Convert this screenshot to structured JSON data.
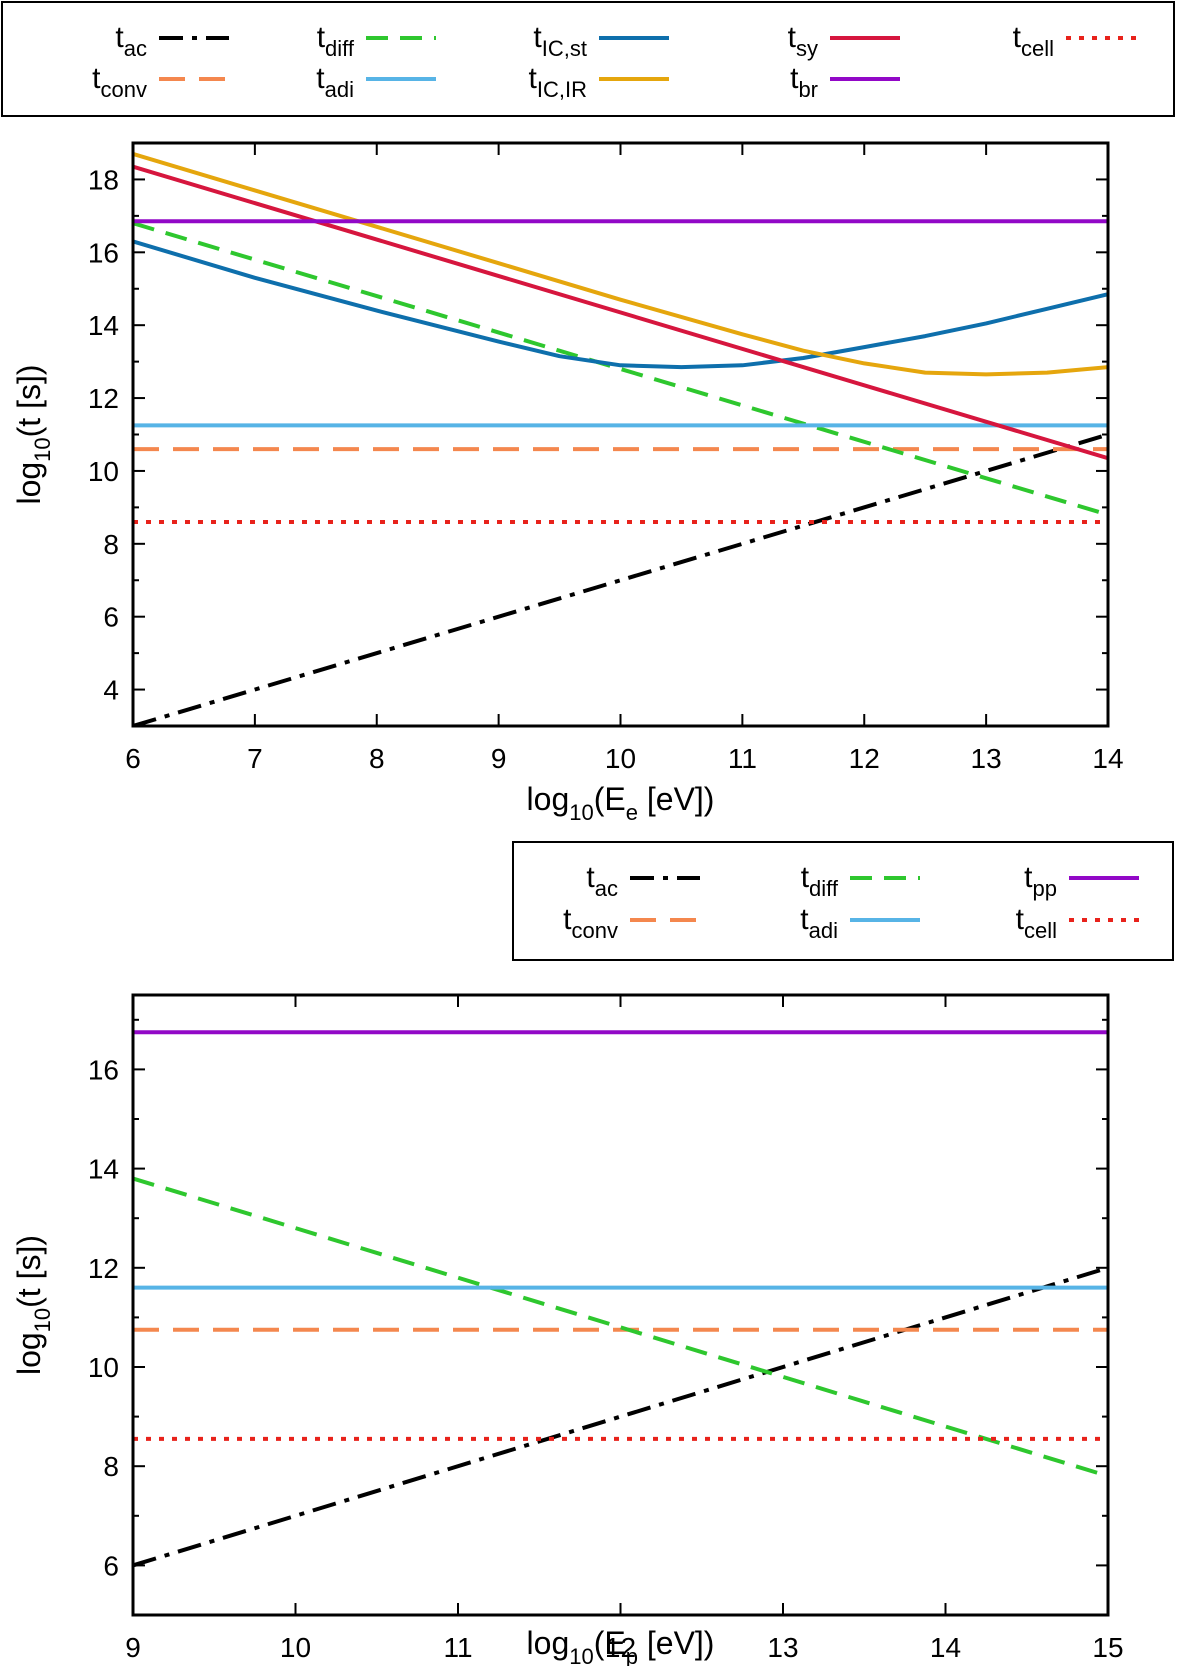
{
  "chart_data": [
    {
      "type": "line",
      "id": "electrons",
      "xlabel": {
        "main": "log",
        "sub1": "10",
        "mid": "(E",
        "sub2": "e",
        "tail": " [eV])"
      },
      "ylabel": {
        "main": "log",
        "sub1": "10",
        "tail": "(t [s])"
      },
      "xlim": [
        6,
        14
      ],
      "ylim": [
        3,
        19
      ],
      "xticks": [
        6,
        7,
        8,
        9,
        10,
        11,
        12,
        13,
        14
      ],
      "yticks": [
        4,
        6,
        8,
        10,
        12,
        14,
        16,
        18
      ],
      "series": [
        {
          "key": "ac",
          "name": "t",
          "sub": "ac",
          "color": "#000000",
          "dash": "dashdot",
          "x": [
            6,
            14
          ],
          "y": [
            3.0,
            11.0
          ]
        },
        {
          "key": "conv",
          "name": "t",
          "sub": "conv",
          "color": "#f4874e",
          "dash": "longdash",
          "x": [
            6,
            14
          ],
          "y": [
            10.6,
            10.6
          ]
        },
        {
          "key": "diff",
          "name": "t",
          "sub": "diff",
          "color": "#2ec72e",
          "dash": "dash",
          "x": [
            6,
            14
          ],
          "y": [
            16.8,
            8.8
          ]
        },
        {
          "key": "adi",
          "name": "t",
          "sub": "adi",
          "color": "#57b4e6",
          "dash": "solid",
          "x": [
            6,
            14
          ],
          "y": [
            11.25,
            11.25
          ]
        },
        {
          "key": "icst",
          "name": "t",
          "sub": "IC,st",
          "color": "#0e6fac",
          "dash": "solid",
          "x": [
            6,
            7,
            8,
            9,
            9.5,
            10,
            10.5,
            11,
            11.5,
            12,
            12.5,
            13,
            13.5,
            14
          ],
          "y": [
            16.3,
            15.3,
            14.4,
            13.55,
            13.15,
            12.9,
            12.85,
            12.9,
            13.1,
            13.4,
            13.7,
            14.05,
            14.45,
            14.85
          ]
        },
        {
          "key": "icir",
          "name": "t",
          "sub": "IC,IR",
          "color": "#e5a60d",
          "dash": "solid",
          "x": [
            6,
            7,
            8,
            9,
            10,
            11,
            11.5,
            12,
            12.5,
            13,
            13.5,
            14
          ],
          "y": [
            18.7,
            17.7,
            16.7,
            15.7,
            14.7,
            13.75,
            13.3,
            12.95,
            12.7,
            12.65,
            12.7,
            12.85
          ]
        },
        {
          "key": "sy",
          "name": "t",
          "sub": "sy",
          "color": "#d6163e",
          "dash": "solid",
          "x": [
            6,
            14
          ],
          "y": [
            18.35,
            10.35
          ]
        },
        {
          "key": "br",
          "name": "t",
          "sub": "br",
          "color": "#9208c7",
          "dash": "solid",
          "x": [
            6,
            14
          ],
          "y": [
            16.85,
            16.85
          ]
        },
        {
          "key": "cell",
          "name": "t",
          "sub": "cell",
          "color": "#e8221b",
          "dash": "dot",
          "x": [
            6,
            14
          ],
          "y": [
            8.6,
            8.6
          ]
        }
      ]
    },
    {
      "type": "line",
      "id": "protons",
      "xlabel": {
        "main": "log",
        "sub1": "10",
        "mid": "(E",
        "sub2": "p",
        "tail": " [eV])"
      },
      "ylabel": {
        "main": "log",
        "sub1": "10",
        "tail": "(t [s])"
      },
      "xlim": [
        9,
        15
      ],
      "ylim": [
        5,
        17.5
      ],
      "xticks": [
        9,
        10,
        11,
        12,
        13,
        14,
        15
      ],
      "yticks": [
        6,
        8,
        10,
        12,
        14,
        16
      ],
      "series": [
        {
          "key": "ac",
          "name": "t",
          "sub": "ac",
          "color": "#000000",
          "dash": "dashdot",
          "x": [
            9,
            15
          ],
          "y": [
            6.0,
            12.0
          ]
        },
        {
          "key": "conv",
          "name": "t",
          "sub": "conv",
          "color": "#f4874e",
          "dash": "longdash",
          "x": [
            9,
            15
          ],
          "y": [
            10.75,
            10.75
          ]
        },
        {
          "key": "diff",
          "name": "t",
          "sub": "diff",
          "color": "#2ec72e",
          "dash": "dash",
          "x": [
            9,
            15
          ],
          "y": [
            13.8,
            7.8
          ]
        },
        {
          "key": "adi",
          "name": "t",
          "sub": "adi",
          "color": "#57b4e6",
          "dash": "solid",
          "x": [
            9,
            15
          ],
          "y": [
            11.6,
            11.6
          ]
        },
        {
          "key": "pp",
          "name": "t",
          "sub": "pp",
          "color": "#9208c7",
          "dash": "solid",
          "x": [
            9,
            15
          ],
          "y": [
            16.75,
            16.75
          ]
        },
        {
          "key": "cell",
          "name": "t",
          "sub": "cell",
          "color": "#e8221b",
          "dash": "dot",
          "x": [
            9,
            15
          ],
          "y": [
            8.55,
            8.55
          ]
        }
      ]
    }
  ]
}
